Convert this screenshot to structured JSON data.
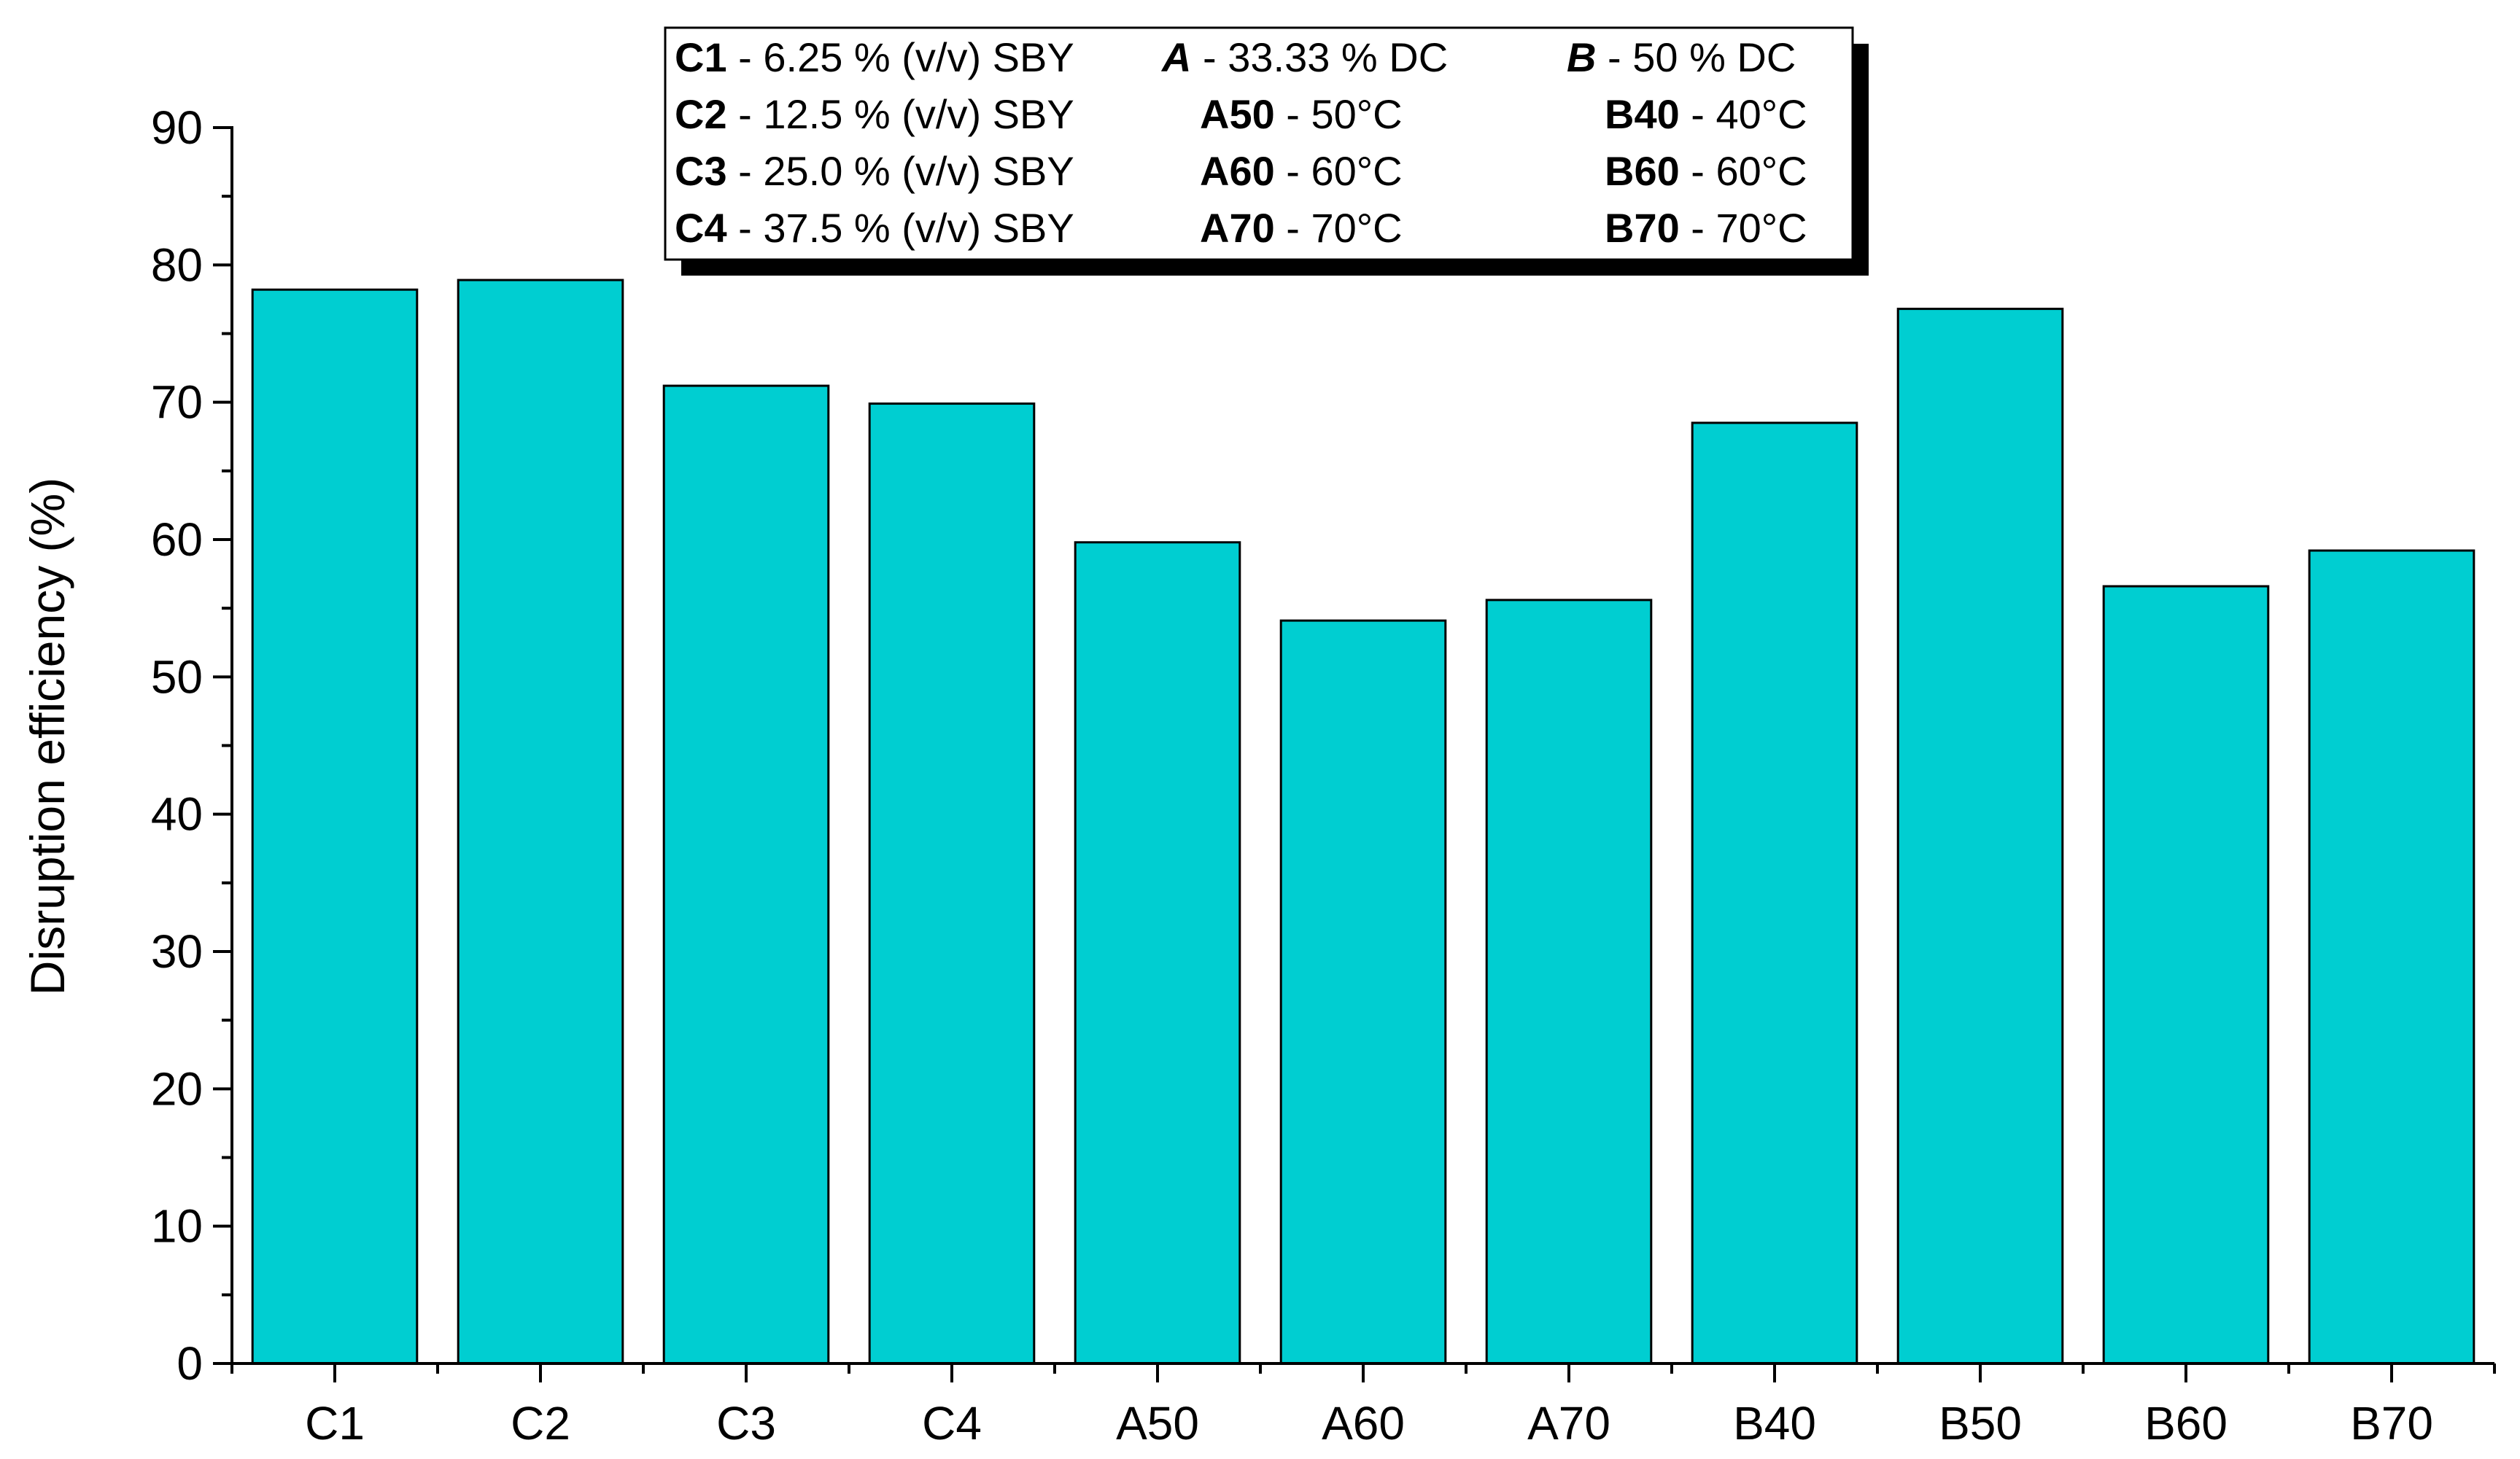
{
  "chart_data": {
    "type": "bar",
    "title": "",
    "xlabel": "",
    "ylabel": "Disruption efficiency (%)",
    "ylim": [
      0,
      90
    ],
    "yticks": [
      0,
      10,
      20,
      30,
      40,
      50,
      60,
      70,
      80,
      90
    ],
    "grid": false,
    "bar_color": "#00CED1",
    "categories": [
      "C1",
      "C2",
      "C3",
      "C4",
      "A50",
      "A60",
      "A70",
      "B40",
      "B50",
      "B60",
      "B70"
    ],
    "values": [
      78.2,
      78.9,
      71.2,
      69.9,
      59.8,
      54.1,
      55.6,
      68.5,
      76.8,
      56.6,
      59.2
    ],
    "legend": {
      "placement": "top-center",
      "rows": [
        [
          {
            "key": "C1",
            "text": " - 6.25 % (v/v) SBY",
            "style": "bold"
          },
          {
            "key": "A",
            "text": " - 33.33 % DC",
            "style": "bold-italic"
          },
          {
            "key": "B",
            "text": " - 50 % DC",
            "style": "bold-italic"
          }
        ],
        [
          {
            "key": "C2",
            "text": " - 12.5 % (v/v) SBY",
            "style": "bold"
          },
          {
            "key": "A50",
            "text": " - 50°C",
            "style": "bold"
          },
          {
            "key": "B40",
            "text": " - 40°C",
            "style": "bold"
          }
        ],
        [
          {
            "key": "C3",
            "text": " - 25.0 % (v/v) SBY",
            "style": "bold"
          },
          {
            "key": "A60",
            "text": " - 60°C",
            "style": "bold"
          },
          {
            "key": "B60",
            "text": " - 60°C",
            "style": "bold"
          }
        ],
        [
          {
            "key": "C4",
            "text": " - 37.5 % (v/v) SBY",
            "style": "bold"
          },
          {
            "key": "A70",
            "text": " - 70°C",
            "style": "bold"
          },
          {
            "key": "B70",
            "text": " - 70°C",
            "style": "bold"
          }
        ]
      ]
    }
  }
}
